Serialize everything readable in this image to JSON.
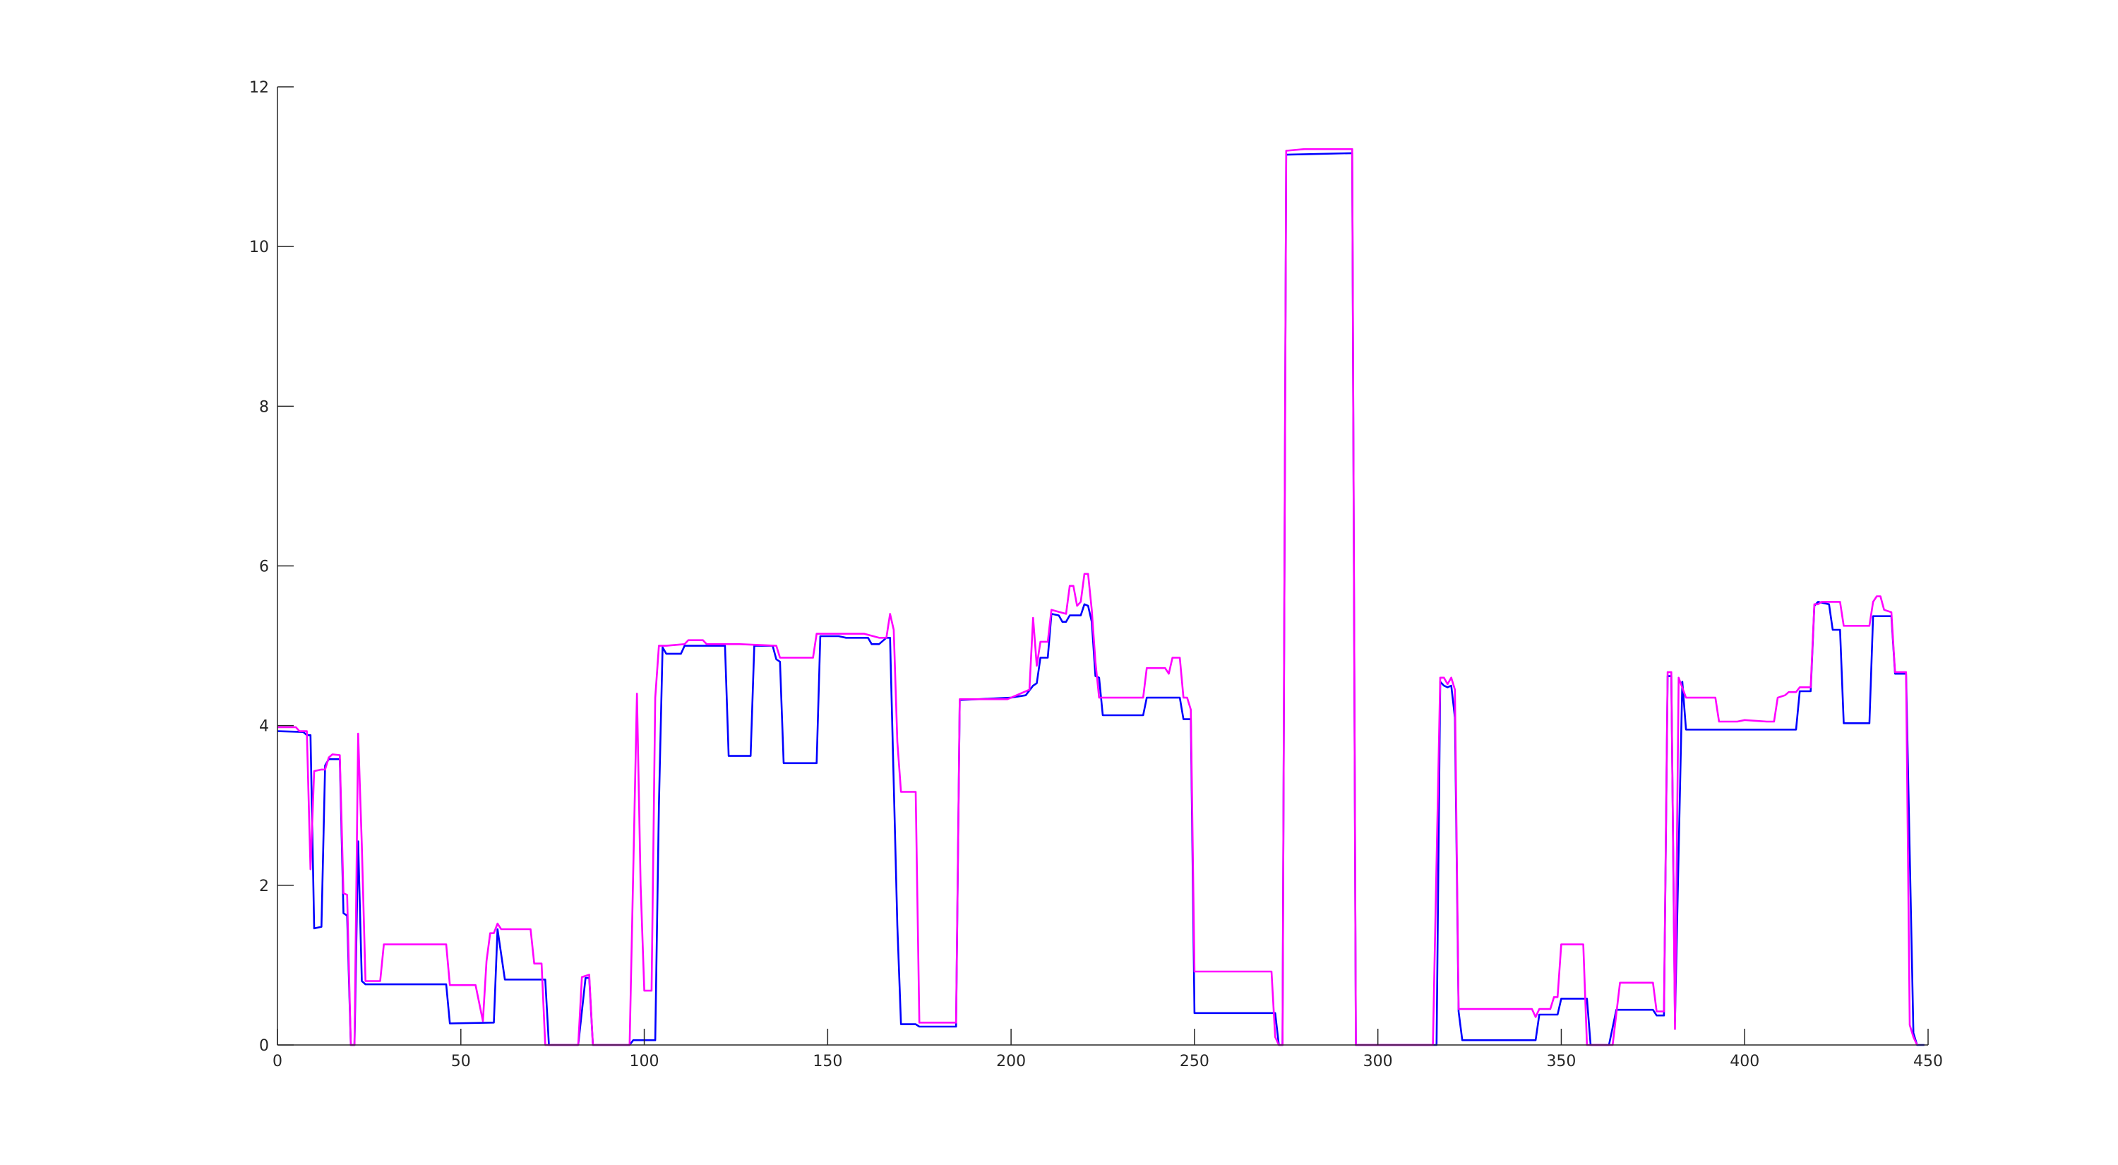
{
  "chart_data": {
    "type": "line",
    "title": "",
    "xlabel": "",
    "ylabel": "",
    "xlim": [
      0,
      450
    ],
    "ylim": [
      0,
      12
    ],
    "x_ticks": [
      0,
      50,
      100,
      150,
      200,
      250,
      300,
      350,
      400,
      450
    ],
    "y_ticks": [
      0,
      2,
      4,
      6,
      8,
      10,
      12
    ],
    "x_tick_labels": [
      "0",
      "50",
      "100",
      "150",
      "200",
      "250",
      "300",
      "350",
      "400",
      "450"
    ],
    "y_tick_labels": [
      "0",
      "2",
      "4",
      "6",
      "8",
      "10",
      "12"
    ],
    "grid": false,
    "legend": "none",
    "series": [
      {
        "color": "#0000ff",
        "points": [
          [
            0,
            3.93
          ],
          [
            7,
            3.92
          ],
          [
            8,
            3.88
          ],
          [
            9,
            3.88
          ],
          [
            10,
            1.46
          ],
          [
            12,
            1.48
          ],
          [
            13,
            3.5
          ],
          [
            14,
            3.58
          ],
          [
            17,
            3.58
          ],
          [
            18,
            1.65
          ],
          [
            19,
            1.62
          ],
          [
            20,
            0.0
          ],
          [
            21,
            0.0
          ],
          [
            22,
            2.55
          ],
          [
            23,
            0.8
          ],
          [
            24,
            0.76
          ],
          [
            46,
            0.76
          ],
          [
            47,
            0.27
          ],
          [
            59,
            0.28
          ],
          [
            60,
            1.45
          ],
          [
            62,
            0.82
          ],
          [
            73,
            0.82
          ],
          [
            74,
            0.0
          ],
          [
            82,
            0.0
          ],
          [
            84,
            0.84
          ],
          [
            85,
            0.84
          ],
          [
            86,
            0.0
          ],
          [
            96,
            0.0
          ],
          [
            97,
            0.06
          ],
          [
            103,
            0.06
          ],
          [
            104,
            3.0
          ],
          [
            105,
            4.98
          ],
          [
            106,
            4.9
          ],
          [
            110,
            4.9
          ],
          [
            111,
            5.0
          ],
          [
            122,
            5.0
          ],
          [
            123,
            3.62
          ],
          [
            129,
            3.62
          ],
          [
            130,
            5.0
          ],
          [
            135,
            5.0
          ],
          [
            136,
            4.83
          ],
          [
            137,
            4.8
          ],
          [
            138,
            3.53
          ],
          [
            147,
            3.53
          ],
          [
            148,
            5.12
          ],
          [
            153,
            5.12
          ],
          [
            155,
            5.1
          ],
          [
            161,
            5.1
          ],
          [
            162,
            5.02
          ],
          [
            164,
            5.02
          ],
          [
            166,
            5.1
          ],
          [
            167,
            5.1
          ],
          [
            169,
            1.5
          ],
          [
            170,
            0.26
          ],
          [
            174,
            0.26
          ],
          [
            175,
            0.23
          ],
          [
            185,
            0.23
          ],
          [
            186,
            4.32
          ],
          [
            200,
            4.35
          ],
          [
            204,
            4.38
          ],
          [
            206,
            4.5
          ],
          [
            207,
            4.53
          ],
          [
            208,
            4.85
          ],
          [
            210,
            4.85
          ],
          [
            211,
            5.4
          ],
          [
            213,
            5.38
          ],
          [
            214,
            5.3
          ],
          [
            215,
            5.3
          ],
          [
            216,
            5.38
          ],
          [
            219,
            5.38
          ],
          [
            220,
            5.52
          ],
          [
            221,
            5.5
          ],
          [
            222,
            5.3
          ],
          [
            223,
            4.62
          ],
          [
            224,
            4.6
          ],
          [
            225,
            4.13
          ],
          [
            236,
            4.13
          ],
          [
            237,
            4.35
          ],
          [
            246,
            4.35
          ],
          [
            247,
            4.08
          ],
          [
            249,
            4.08
          ],
          [
            250,
            0.4
          ],
          [
            272,
            0.4
          ],
          [
            273,
            0.0
          ],
          [
            274,
            0.0
          ],
          [
            275,
            11.15
          ],
          [
            293,
            11.17
          ],
          [
            294,
            0.0
          ],
          [
            316,
            0.0
          ],
          [
            317,
            4.55
          ],
          [
            318,
            4.5
          ],
          [
            319,
            4.48
          ],
          [
            320,
            4.5
          ],
          [
            321,
            4.1
          ],
          [
            322,
            0.42
          ],
          [
            323,
            0.06
          ],
          [
            343,
            0.06
          ],
          [
            344,
            0.38
          ],
          [
            349,
            0.38
          ],
          [
            350,
            0.58
          ],
          [
            357,
            0.58
          ],
          [
            358,
            0.0
          ],
          [
            363,
            0.0
          ],
          [
            365,
            0.44
          ],
          [
            375,
            0.44
          ],
          [
            376,
            0.37
          ],
          [
            378,
            0.37
          ],
          [
            379,
            4.62
          ],
          [
            380,
            4.62
          ],
          [
            381,
            0.3
          ],
          [
            383,
            4.55
          ],
          [
            384,
            3.95
          ],
          [
            414,
            3.95
          ],
          [
            415,
            4.43
          ],
          [
            418,
            4.43
          ],
          [
            419,
            5.5
          ],
          [
            420,
            5.55
          ],
          [
            423,
            5.52
          ],
          [
            424,
            5.2
          ],
          [
            426,
            5.2
          ],
          [
            427,
            4.03
          ],
          [
            434,
            4.03
          ],
          [
            435,
            5.37
          ],
          [
            440,
            5.37
          ],
          [
            441,
            4.65
          ],
          [
            444,
            4.65
          ],
          [
            446,
            0.15
          ],
          [
            447,
            0.0
          ],
          [
            449,
            0.0
          ]
        ]
      },
      {
        "color": "#ff00ff",
        "points": [
          [
            0,
            3.98
          ],
          [
            5,
            3.98
          ],
          [
            6,
            3.93
          ],
          [
            8,
            3.93
          ],
          [
            9,
            2.2
          ],
          [
            10,
            3.43
          ],
          [
            12,
            3.45
          ],
          [
            13,
            3.45
          ],
          [
            14,
            3.6
          ],
          [
            15,
            3.64
          ],
          [
            17,
            3.63
          ],
          [
            18,
            1.9
          ],
          [
            19,
            1.88
          ],
          [
            20,
            0.0
          ],
          [
            21,
            0.0
          ],
          [
            22,
            3.9
          ],
          [
            23,
            2.5
          ],
          [
            24,
            0.8
          ],
          [
            28,
            0.8
          ],
          [
            29,
            1.26
          ],
          [
            46,
            1.26
          ],
          [
            47,
            0.75
          ],
          [
            54,
            0.75
          ],
          [
            56,
            0.3
          ],
          [
            57,
            1.05
          ],
          [
            58,
            1.4
          ],
          [
            59,
            1.4
          ],
          [
            60,
            1.52
          ],
          [
            61,
            1.45
          ],
          [
            69,
            1.45
          ],
          [
            70,
            1.02
          ],
          [
            72,
            1.02
          ],
          [
            73,
            0.0
          ],
          [
            82,
            0.0
          ],
          [
            83,
            0.85
          ],
          [
            85,
            0.88
          ],
          [
            86,
            0.0
          ],
          [
            96,
            0.0
          ],
          [
            98,
            4.4
          ],
          [
            99,
            2.0
          ],
          [
            100,
            0.68
          ],
          [
            102,
            0.68
          ],
          [
            103,
            4.35
          ],
          [
            104,
            5.0
          ],
          [
            106,
            5.0
          ],
          [
            111,
            5.02
          ],
          [
            112,
            5.07
          ],
          [
            116,
            5.07
          ],
          [
            117,
            5.02
          ],
          [
            120,
            5.02
          ],
          [
            126,
            5.02
          ],
          [
            136,
            5.0
          ],
          [
            137,
            4.85
          ],
          [
            146,
            4.85
          ],
          [
            147,
            5.15
          ],
          [
            160,
            5.15
          ],
          [
            164,
            5.1
          ],
          [
            166,
            5.1
          ],
          [
            167,
            5.4
          ],
          [
            168,
            5.2
          ],
          [
            169,
            3.8
          ],
          [
            170,
            3.17
          ],
          [
            174,
            3.17
          ],
          [
            175,
            0.28
          ],
          [
            185,
            0.28
          ],
          [
            186,
            4.33
          ],
          [
            199,
            4.33
          ],
          [
            205,
            4.45
          ],
          [
            206,
            5.35
          ],
          [
            207,
            4.75
          ],
          [
            208,
            5.05
          ],
          [
            210,
            5.05
          ],
          [
            211,
            5.45
          ],
          [
            215,
            5.4
          ],
          [
            216,
            5.75
          ],
          [
            217,
            5.75
          ],
          [
            218,
            5.5
          ],
          [
            219,
            5.55
          ],
          [
            220,
            5.9
          ],
          [
            221,
            5.9
          ],
          [
            222,
            5.45
          ],
          [
            223,
            4.8
          ],
          [
            224,
            4.35
          ],
          [
            236,
            4.35
          ],
          [
            237,
            4.72
          ],
          [
            242,
            4.72
          ],
          [
            243,
            4.65
          ],
          [
            244,
            4.85
          ],
          [
            246,
            4.85
          ],
          [
            247,
            4.35
          ],
          [
            248,
            4.35
          ],
          [
            249,
            4.2
          ],
          [
            250,
            0.92
          ],
          [
            271,
            0.92
          ],
          [
            272,
            0.1
          ],
          [
            273,
            0.0
          ],
          [
            274,
            0.0
          ],
          [
            275,
            11.2
          ],
          [
            280,
            11.22
          ],
          [
            293,
            11.22
          ],
          [
            294,
            0.0
          ],
          [
            315,
            0.0
          ],
          [
            317,
            4.6
          ],
          [
            318,
            4.6
          ],
          [
            319,
            4.52
          ],
          [
            320,
            4.6
          ],
          [
            321,
            4.45
          ],
          [
            322,
            0.45
          ],
          [
            323,
            0.45
          ],
          [
            342,
            0.45
          ],
          [
            343,
            0.35
          ],
          [
            344,
            0.45
          ],
          [
            347,
            0.45
          ],
          [
            348,
            0.6
          ],
          [
            349,
            0.6
          ],
          [
            350,
            1.26
          ],
          [
            356,
            1.26
          ],
          [
            357,
            0.0
          ],
          [
            364,
            0.0
          ],
          [
            366,
            0.78
          ],
          [
            375,
            0.78
          ],
          [
            376,
            0.42
          ],
          [
            378,
            0.42
          ],
          [
            379,
            4.67
          ],
          [
            380,
            4.67
          ],
          [
            381,
            0.2
          ],
          [
            382,
            4.6
          ],
          [
            384,
            4.35
          ],
          [
            392,
            4.35
          ],
          [
            393,
            4.05
          ],
          [
            398,
            4.05
          ],
          [
            400,
            4.07
          ],
          [
            406,
            4.05
          ],
          [
            408,
            4.05
          ],
          [
            409,
            4.35
          ],
          [
            411,
            4.38
          ],
          [
            412,
            4.42
          ],
          [
            414,
            4.42
          ],
          [
            415,
            4.48
          ],
          [
            418,
            4.48
          ],
          [
            419,
            5.52
          ],
          [
            420,
            5.52
          ],
          [
            421,
            5.55
          ],
          [
            426,
            5.55
          ],
          [
            427,
            5.25
          ],
          [
            434,
            5.25
          ],
          [
            435,
            5.55
          ],
          [
            436,
            5.62
          ],
          [
            437,
            5.62
          ],
          [
            438,
            5.45
          ],
          [
            440,
            5.42
          ],
          [
            441,
            4.67
          ],
          [
            444,
            4.67
          ],
          [
            445,
            0.25
          ],
          [
            446,
            0.1
          ],
          [
            447,
            0.0
          ]
        ]
      }
    ]
  }
}
